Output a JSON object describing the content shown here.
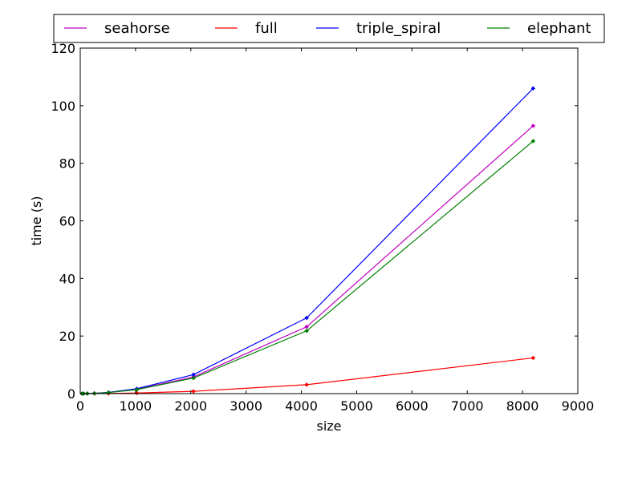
{
  "chart_data": {
    "type": "line",
    "xlabel": "size",
    "ylabel": "time (s)",
    "xlim": [
      0,
      9000
    ],
    "ylim": [
      0,
      120
    ],
    "x_ticks": [
      0,
      1000,
      2000,
      3000,
      4000,
      5000,
      6000,
      7000,
      8000,
      9000
    ],
    "y_ticks": [
      0,
      20,
      40,
      60,
      80,
      100,
      120
    ],
    "grid": false,
    "legend_position": "top (above plot, single row)",
    "series": [
      {
        "name": "seahorse",
        "color": "#bf00bf",
        "x": [
          32,
          64,
          128,
          256,
          512,
          1024,
          2048,
          4096,
          8192
        ],
        "y": [
          0.0,
          0.01,
          0.03,
          0.1,
          0.4,
          1.5,
          5.8,
          23.2,
          93.0
        ]
      },
      {
        "name": "full",
        "color": "#ff0000",
        "x": [
          32,
          64,
          128,
          256,
          512,
          1024,
          2048,
          4096,
          8192
        ],
        "y": [
          0.0,
          0.0,
          0.01,
          0.02,
          0.05,
          0.2,
          0.8,
          3.1,
          12.4
        ]
      },
      {
        "name": "triple_spiral",
        "color": "#0000ff",
        "x": [
          32,
          64,
          128,
          256,
          512,
          1024,
          2048,
          4096,
          8192
        ],
        "y": [
          0.0,
          0.01,
          0.03,
          0.11,
          0.42,
          1.7,
          6.6,
          26.3,
          106.0
        ]
      },
      {
        "name": "elephant",
        "color": "#008000",
        "x": [
          32,
          64,
          128,
          256,
          512,
          1024,
          2048,
          4096,
          8192
        ],
        "y": [
          0.0,
          0.01,
          0.03,
          0.09,
          0.36,
          1.4,
          5.4,
          21.8,
          87.7
        ]
      }
    ]
  }
}
